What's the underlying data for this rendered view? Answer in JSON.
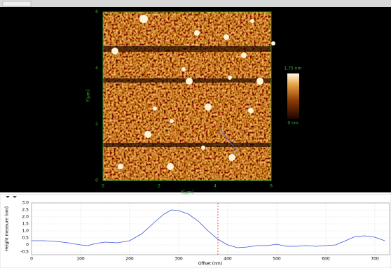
{
  "image": {
    "y_axis_label": "Y[µm]",
    "x_axis_label": "X[µm]",
    "yticks": [
      "6",
      "4",
      "2",
      "0"
    ],
    "xticks": [
      "0",
      "2",
      "4",
      "6"
    ],
    "colorbar_max": "1.75 nm",
    "colorbar_min": "0 nm"
  },
  "chart_data": {
    "type": "line",
    "y_label": "Height measure (nm)",
    "x_label": "Offset (nm)",
    "x": [
      0,
      25,
      50,
      75,
      100,
      115,
      130,
      150,
      175,
      200,
      225,
      250,
      270,
      285,
      300,
      320,
      340,
      360,
      380,
      400,
      420,
      440,
      460,
      480,
      500,
      520,
      540,
      560,
      580,
      600,
      620,
      640,
      660,
      680,
      700,
      720
    ],
    "series": [
      {
        "color": "#3a55d8",
        "values": [
          0.3,
          0.3,
          0.25,
          0.15,
          0.0,
          -0.05,
          0.1,
          0.2,
          0.15,
          0.3,
          0.8,
          1.6,
          2.2,
          2.5,
          2.45,
          2.2,
          1.7,
          1.0,
          0.4,
          0.0,
          -0.2,
          -0.15,
          -0.05,
          -0.05,
          0.05,
          -0.1,
          -0.1,
          -0.05,
          -0.1,
          -0.05,
          0.0,
          0.3,
          0.6,
          0.65,
          0.55,
          0.3
        ]
      }
    ],
    "cursor_x": 380,
    "xlim": [
      0,
      730
    ],
    "ylim": [
      -0.7,
      3.0
    ],
    "xticks": [
      0,
      100,
      200,
      300,
      400,
      500,
      600,
      700
    ],
    "yticks": [
      -0.5,
      0,
      0.5,
      {
        "value": 1,
        "label": "1.0"
      },
      1.5,
      {
        "value": 2,
        "label": "2.0"
      },
      2.5,
      {
        "value": 3,
        "label": "3.0"
      }
    ],
    "grid": true
  }
}
